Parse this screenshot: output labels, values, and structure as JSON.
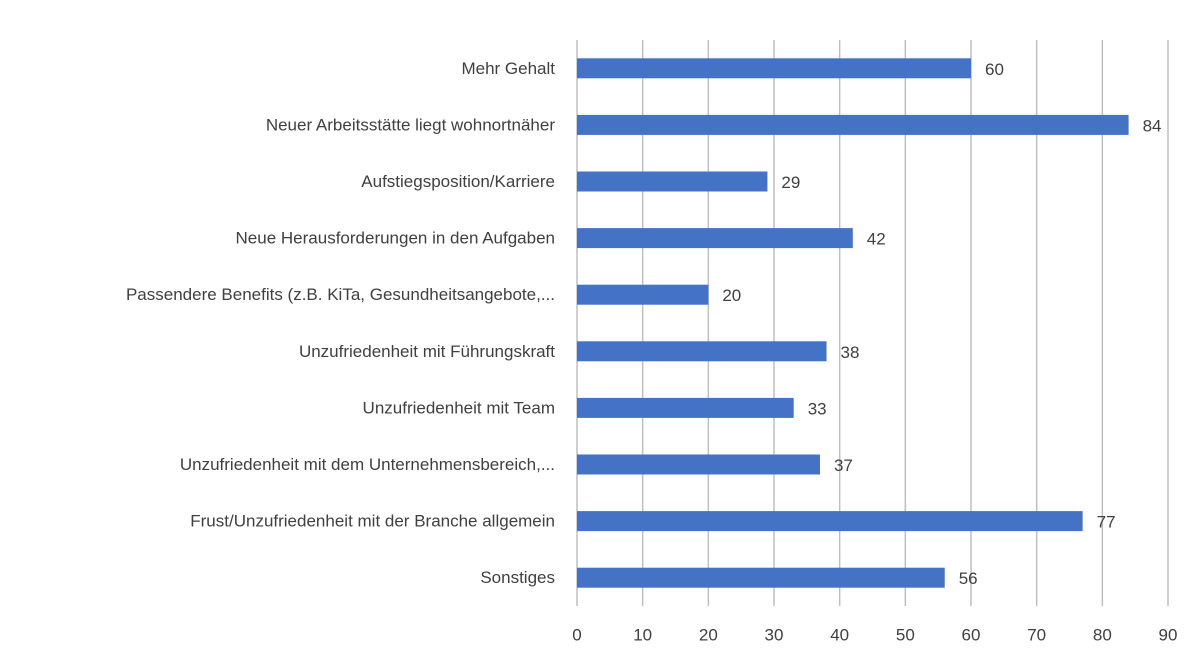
{
  "chart_data": {
    "type": "bar",
    "orientation": "horizontal",
    "categories": [
      "Mehr Gehalt",
      "Neuer Arbeitsstätte liegt wohnortnäher",
      "Aufstiegsposition/Karriere",
      "Neue Herausforderungen in den Aufgaben",
      "Passendere Benefits (z.B. KiTa, Gesundheitsangebote,...",
      "Unzufriedenheit mit Führungskraft",
      "Unzufriedenheit mit Team",
      "Unzufriedenheit mit dem Unternehmensbereich,...",
      "Frust/Unzufriedenheit mit der Branche allgemein",
      "Sonstiges"
    ],
    "values": [
      60,
      84,
      29,
      42,
      20,
      38,
      33,
      37,
      77,
      56
    ],
    "color": "#4472c4",
    "xlim": [
      0,
      90
    ],
    "xticks": [
      0,
      10,
      20,
      30,
      40,
      50,
      60,
      70,
      80,
      90
    ],
    "grid": true,
    "data_labels": true
  }
}
